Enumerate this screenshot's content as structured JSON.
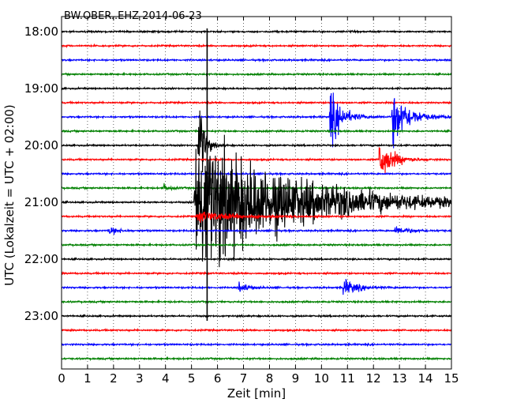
{
  "chart_data": {
    "type": "line",
    "title": "BW.OBER..EHZ 2014-06-23",
    "xlabel": "Zeit  [min]",
    "ylabel": "UTC (Lokalzeit = UTC + 02:00)",
    "xlim": [
      0,
      15
    ],
    "xticks": [
      0,
      1,
      2,
      3,
      4,
      5,
      6,
      7,
      8,
      9,
      10,
      11,
      12,
      13,
      14,
      15
    ],
    "row_labels": [
      "18:00",
      "19:00",
      "20:00",
      "21:00",
      "22:00",
      "23:00"
    ],
    "rows_per_hour": 4,
    "row_colors": [
      "#000000",
      "#ff0000",
      "#0000ff",
      "#008000"
    ],
    "grid": true,
    "traces": [
      {
        "row": 0,
        "label": "18:00",
        "color": "#000000",
        "events": []
      },
      {
        "row": 1,
        "color": "#ff0000",
        "events": []
      },
      {
        "row": 2,
        "color": "#0000ff",
        "events": []
      },
      {
        "row": 3,
        "color": "#008000",
        "events": []
      },
      {
        "row": 4,
        "label": "19:00",
        "color": "#000000",
        "events": []
      },
      {
        "row": 5,
        "color": "#ff0000",
        "events": []
      },
      {
        "row": 6,
        "color": "#0000ff",
        "events": [
          {
            "t": 10.3,
            "amp": 2.0,
            "dur": 1.2
          },
          {
            "t": 12.7,
            "amp": 2.0,
            "dur": 1.6
          }
        ]
      },
      {
        "row": 7,
        "color": "#008000",
        "events": []
      },
      {
        "row": 8,
        "label": "20:00",
        "color": "#000000",
        "events": [
          {
            "t": 5.25,
            "amp": 5.0,
            "dur": 0.5
          }
        ]
      },
      {
        "row": 9,
        "color": "#ff0000",
        "events": [
          {
            "t": 12.2,
            "amp": 1.6,
            "dur": 1.3
          }
        ]
      },
      {
        "row": 10,
        "color": "#0000ff",
        "events": []
      },
      {
        "row": 11,
        "color": "#008000",
        "events": [
          {
            "t": 3.9,
            "amp": 0.3,
            "dur": 0.6
          }
        ]
      },
      {
        "row": 12,
        "label": "21:00",
        "color": "#000000",
        "events": [
          {
            "t": 5.1,
            "amp": 4.8,
            "dur": 9.9
          }
        ]
      },
      {
        "row": 13,
        "color": "#ff0000",
        "events": [
          {
            "t": 5.2,
            "amp": 0.4,
            "dur": 3.5
          }
        ]
      },
      {
        "row": 14,
        "color": "#0000ff",
        "events": [
          {
            "t": 1.8,
            "amp": 0.3,
            "dur": 1.0
          },
          {
            "t": 12.8,
            "amp": 0.3,
            "dur": 1.5
          }
        ]
      },
      {
        "row": 15,
        "color": "#008000",
        "events": []
      },
      {
        "row": 16,
        "label": "22:00",
        "color": "#000000",
        "events": []
      },
      {
        "row": 17,
        "color": "#ff0000",
        "events": []
      },
      {
        "row": 18,
        "color": "#0000ff",
        "events": [
          {
            "t": 6.8,
            "amp": 0.4,
            "dur": 0.9
          },
          {
            "t": 10.8,
            "amp": 0.6,
            "dur": 1.4
          }
        ]
      },
      {
        "row": 19,
        "color": "#008000",
        "events": []
      },
      {
        "row": 20,
        "label": "23:00",
        "color": "#000000",
        "events": []
      },
      {
        "row": 21,
        "color": "#ff0000",
        "events": []
      },
      {
        "row": 22,
        "color": "#0000ff",
        "events": []
      },
      {
        "row": 23,
        "color": "#008000",
        "events": []
      }
    ]
  }
}
